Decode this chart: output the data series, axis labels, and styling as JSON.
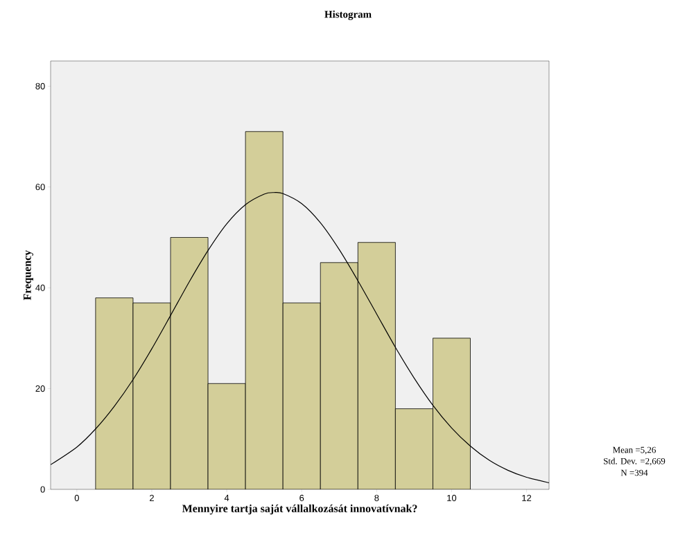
{
  "chart_data": {
    "type": "histogram",
    "title": "Histogram",
    "xlabel": "Mennyire tartja saját vállalkozását innovatívnak?",
    "ylabel": "Frequency",
    "series": [
      {
        "color": "#d3ce99",
        "bins": [
          0.5,
          1.5,
          2.5,
          3.5,
          4.5,
          5.5,
          6.5,
          7.5,
          8.5,
          9.5,
          10.5
        ],
        "values": [
          38,
          37,
          50,
          21,
          71,
          37,
          45,
          49,
          16,
          30
        ]
      },
      {
        "type": "line",
        "color": "#000000",
        "x": [
          -0.7,
          0,
          0.5,
          1,
          1.5,
          2,
          2.5,
          3,
          3.5,
          4,
          4.5,
          5,
          5.26,
          5.5,
          6,
          6.5,
          7,
          7.5,
          8,
          8.5,
          9,
          9.5,
          10,
          10.5,
          11,
          11.5,
          12,
          12.6
        ],
        "values": [
          4.9,
          8.4,
          12.0,
          16.5,
          21.8,
          27.9,
          34.5,
          41.2,
          47.4,
          52.7,
          56.5,
          58.6,
          58.9,
          58.7,
          56.7,
          52.9,
          47.6,
          41.4,
          34.8,
          28.2,
          22.1,
          16.7,
          12.2,
          8.6,
          5.8,
          3.8,
          2.4,
          1.3
        ]
      }
    ],
    "xlim": [
      -0.7,
      12.6
    ],
    "ylim": [
      0,
      85
    ],
    "xticks": [
      0,
      2,
      4,
      6,
      8,
      10,
      12
    ],
    "yticks": [
      0,
      20,
      40,
      60,
      80
    ],
    "grid": false,
    "annotations": [
      "Mean =5,26",
      "Std. Dev. =2,669",
      "N =394"
    ]
  }
}
